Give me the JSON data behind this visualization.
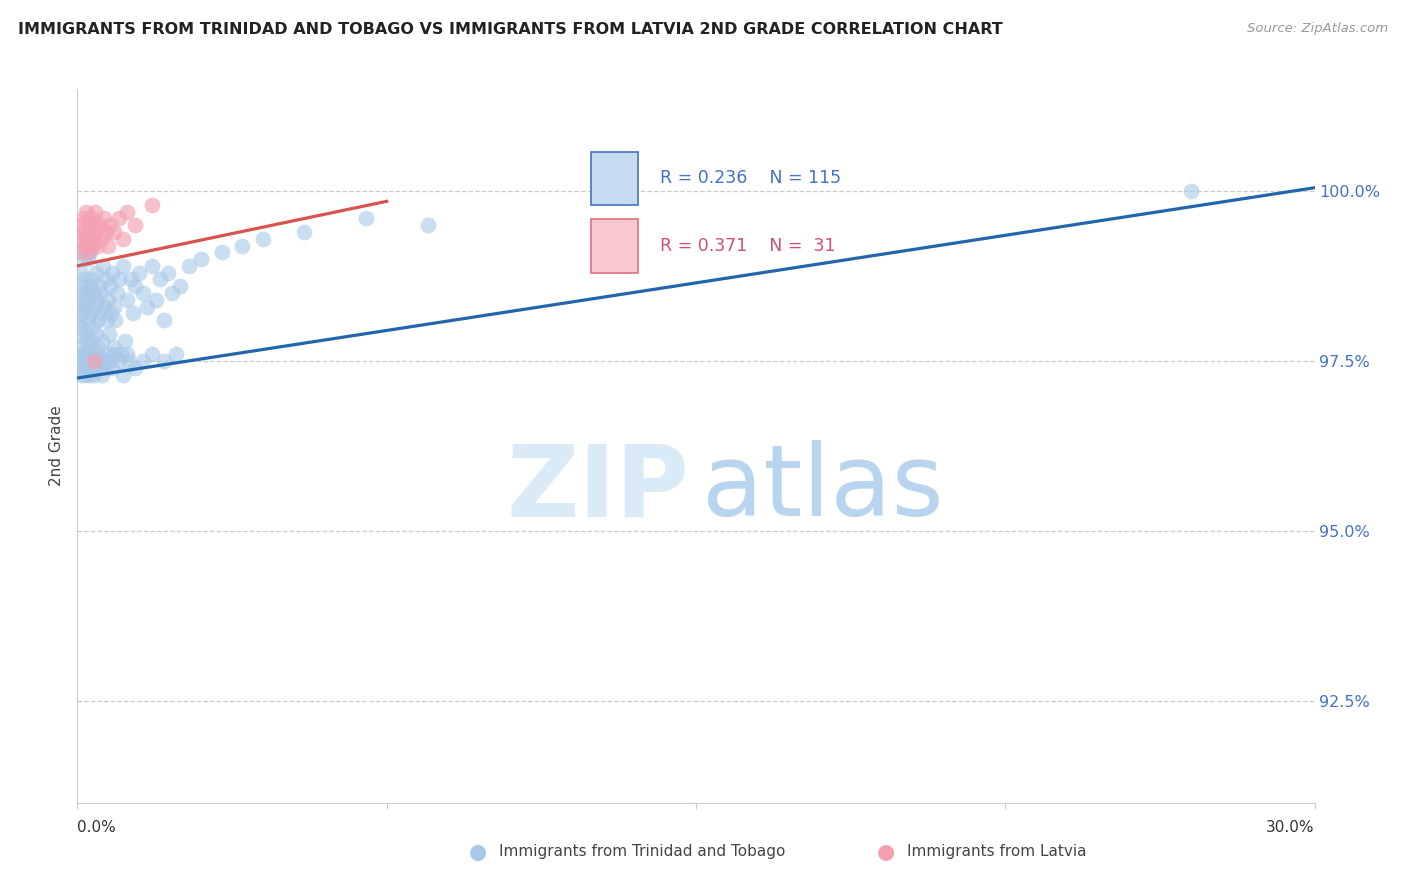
{
  "title": "IMMIGRANTS FROM TRINIDAD AND TOBAGO VS IMMIGRANTS FROM LATVIA 2ND GRADE CORRELATION CHART",
  "source": "Source: ZipAtlas.com",
  "ylabel": "2nd Grade",
  "yticks": [
    92.5,
    95.0,
    97.5,
    100.0
  ],
  "ytick_labels": [
    "92.5%",
    "95.0%",
    "97.5%",
    "100.0%"
  ],
  "xlim": [
    0.0,
    30.0
  ],
  "ylim": [
    91.0,
    101.5
  ],
  "legend_blue_R": "0.236",
  "legend_blue_N": "115",
  "legend_pink_R": "0.371",
  "legend_pink_N": "31",
  "blue_color": "#a8c8e8",
  "pink_color": "#f4a0b0",
  "blue_line_color": "#2166ac",
  "pink_line_color": "#d9534f",
  "blue_trend_x": [
    0.0,
    30.0
  ],
  "blue_trend_y": [
    97.25,
    100.05
  ],
  "pink_trend_x": [
    0.0,
    7.5
  ],
  "pink_trend_y": [
    98.9,
    99.85
  ],
  "blue_scatter_x": [
    0.05,
    0.07,
    0.08,
    0.09,
    0.1,
    0.1,
    0.1,
    0.12,
    0.12,
    0.13,
    0.15,
    0.15,
    0.16,
    0.17,
    0.18,
    0.2,
    0.2,
    0.2,
    0.22,
    0.23,
    0.25,
    0.25,
    0.27,
    0.28,
    0.3,
    0.3,
    0.32,
    0.33,
    0.35,
    0.35,
    0.38,
    0.4,
    0.4,
    0.42,
    0.45,
    0.45,
    0.48,
    0.5,
    0.5,
    0.52,
    0.55,
    0.58,
    0.6,
    0.62,
    0.65,
    0.68,
    0.7,
    0.72,
    0.75,
    0.78,
    0.8,
    0.82,
    0.85,
    0.88,
    0.9,
    0.92,
    0.95,
    1.0,
    1.05,
    1.1,
    1.15,
    1.2,
    1.25,
    1.3,
    1.35,
    1.4,
    1.5,
    1.6,
    1.7,
    1.8,
    1.9,
    2.0,
    2.1,
    2.2,
    2.3,
    2.5,
    2.7,
    3.0,
    3.5,
    4.0,
    4.5,
    5.5,
    7.0,
    8.5,
    27.0,
    0.08,
    0.1,
    0.12,
    0.15,
    0.18,
    0.2,
    0.22,
    0.25,
    0.28,
    0.3,
    0.35,
    0.4,
    0.45,
    0.5,
    0.55,
    0.6,
    0.65,
    0.7,
    0.75,
    0.8,
    0.85,
    0.9,
    1.0,
    1.1,
    1.2,
    1.4,
    1.6,
    1.8,
    2.1,
    2.4
  ],
  "blue_scatter_y": [
    98.3,
    98.1,
    97.9,
    98.5,
    98.0,
    97.7,
    98.8,
    98.2,
    97.6,
    98.4,
    99.0,
    98.6,
    97.5,
    98.7,
    99.1,
    98.3,
    97.8,
    99.2,
    98.5,
    97.9,
    98.1,
    99.0,
    98.4,
    97.7,
    98.6,
    99.1,
    98.2,
    97.8,
    98.7,
    99.2,
    98.0,
    98.5,
    97.6,
    98.3,
    98.8,
    97.9,
    98.4,
    98.1,
    97.7,
    98.6,
    98.2,
    98.5,
    97.8,
    98.9,
    98.3,
    97.5,
    98.7,
    98.1,
    98.4,
    97.9,
    98.6,
    98.2,
    98.8,
    97.7,
    98.3,
    98.1,
    98.5,
    98.7,
    97.6,
    98.9,
    97.8,
    98.4,
    97.5,
    98.7,
    98.2,
    98.6,
    98.8,
    98.5,
    98.3,
    98.9,
    98.4,
    98.7,
    98.1,
    98.8,
    98.5,
    98.6,
    98.9,
    99.0,
    99.1,
    99.2,
    99.3,
    99.4,
    99.6,
    99.5,
    100.0,
    97.3,
    97.5,
    97.4,
    97.6,
    97.3,
    97.5,
    97.4,
    97.6,
    97.3,
    97.5,
    97.4,
    97.3,
    97.5,
    97.6,
    97.4,
    97.3,
    97.5,
    97.4,
    97.6,
    97.5,
    97.4,
    97.6,
    97.5,
    97.3,
    97.6,
    97.4,
    97.5,
    97.6,
    97.5,
    97.6
  ],
  "pink_scatter_x": [
    0.05,
    0.08,
    0.1,
    0.12,
    0.15,
    0.18,
    0.2,
    0.22,
    0.25,
    0.28,
    0.3,
    0.32,
    0.35,
    0.38,
    0.4,
    0.42,
    0.45,
    0.5,
    0.55,
    0.6,
    0.65,
    0.7,
    0.75,
    0.8,
    0.9,
    1.0,
    1.1,
    1.2,
    1.4,
    1.8,
    0.4
  ],
  "pink_scatter_y": [
    99.3,
    99.5,
    99.1,
    99.4,
    99.6,
    99.2,
    99.7,
    99.3,
    99.5,
    99.1,
    99.4,
    99.6,
    99.2,
    99.5,
    99.3,
    99.7,
    99.4,
    99.2,
    99.5,
    99.3,
    99.6,
    99.4,
    99.2,
    99.5,
    99.4,
    99.6,
    99.3,
    99.7,
    99.5,
    99.8,
    97.5
  ],
  "watermark_zip_color": "#daeaf7",
  "watermark_atlas_color": "#b8d4ee"
}
